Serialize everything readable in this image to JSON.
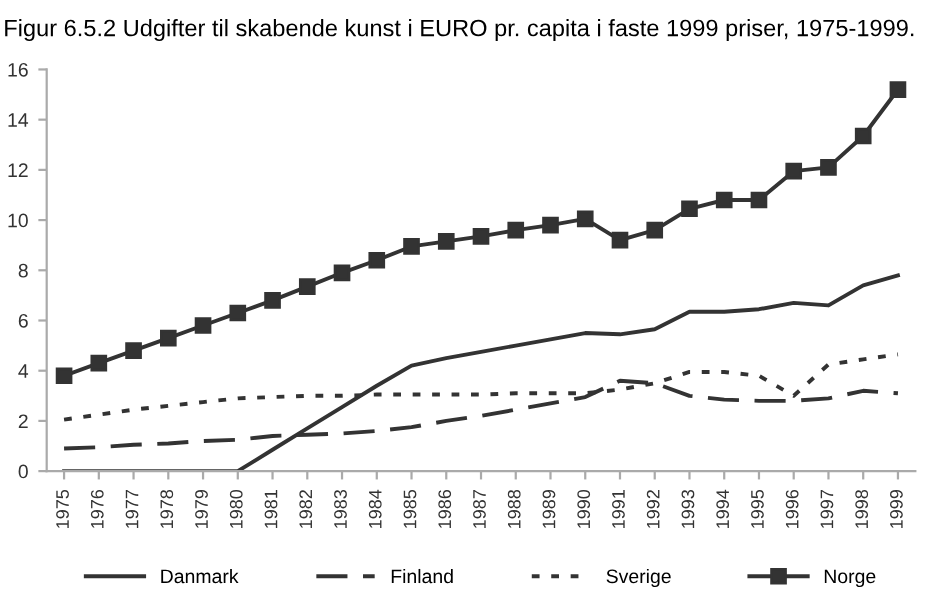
{
  "chart_data": {
    "type": "line",
    "title": "Figur 6.5.2 Udgifter til skabende kunst i EURO pr. capita i faste 1999 priser, 1975-1999.",
    "categories": [
      "1975",
      "1976",
      "1977",
      "1978",
      "1979",
      "1980",
      "1981",
      "1982",
      "1983",
      "1984",
      "1985",
      "1986",
      "1987",
      "1988",
      "1989",
      "1990",
      "1991",
      "1992",
      "1993",
      "1994",
      "1995",
      "1996",
      "1997",
      "1998",
      "1999"
    ],
    "series": [
      {
        "name": "Danmark",
        "color": "#333333",
        "line_style": "solid",
        "marker": "none",
        "values": [
          0,
          0,
          0,
          0,
          0,
          0,
          0.85,
          1.7,
          2.55,
          3.4,
          4.2,
          4.5,
          4.75,
          5.0,
          5.25,
          5.5,
          5.45,
          5.65,
          6.35,
          6.35,
          6.45,
          6.7,
          6.6,
          7.4,
          7.8
        ]
      },
      {
        "name": "Finland",
        "color": "#333333",
        "line_style": "dashed",
        "marker": "none",
        "values": [
          0.9,
          0.95,
          1.05,
          1.1,
          1.2,
          1.25,
          1.4,
          1.45,
          1.5,
          1.6,
          1.75,
          2.0,
          2.2,
          2.45,
          2.7,
          2.95,
          3.6,
          3.5,
          3.0,
          2.85,
          2.8,
          2.8,
          2.9,
          3.2,
          3.1
        ]
      },
      {
        "name": "Sverige",
        "color": "#333333",
        "line_style": "dotted",
        "marker": "none",
        "values": [
          2.05,
          2.25,
          2.45,
          2.6,
          2.75,
          2.9,
          2.95,
          3.0,
          3.0,
          3.05,
          3.05,
          3.05,
          3.05,
          3.1,
          3.1,
          3.1,
          3.25,
          3.5,
          3.95,
          3.95,
          3.8,
          3.0,
          4.25,
          4.45,
          4.65
        ]
      },
      {
        "name": "Norge",
        "color": "#333333",
        "line_style": "solid",
        "marker": "square",
        "values": [
          3.8,
          4.3,
          4.8,
          5.3,
          5.8,
          6.3,
          6.8,
          7.35,
          7.9,
          8.4,
          8.95,
          9.15,
          9.35,
          9.6,
          9.8,
          10.05,
          9.2,
          9.6,
          10.45,
          10.8,
          10.8,
          11.95,
          12.1,
          13.35,
          15.2
        ]
      }
    ],
    "ylim": [
      0,
      16
    ],
    "yticks": [
      0,
      2,
      4,
      6,
      8,
      10,
      12,
      14,
      16
    ],
    "grid": false,
    "legend": "bottom"
  }
}
